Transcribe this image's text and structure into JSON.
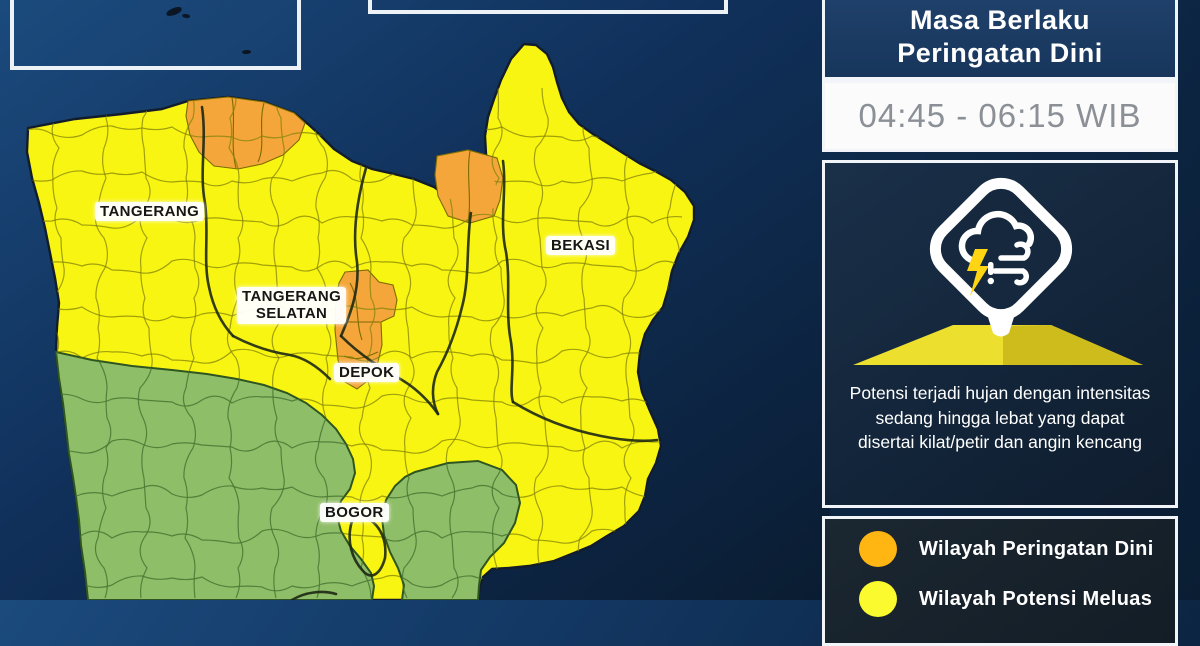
{
  "panel": {
    "title_line1": "Masa Berlaku",
    "title_line2": "Peringatan Dini",
    "validity_time": "04:45 - 06:15 WIB",
    "icon": "storm-warning-pin-icon",
    "description": "Potensi terjadi hujan dengan intensitas sedang hingga lebat yang dapat disertai kilat/petir dan angin kencang",
    "legend": [
      {
        "label": "Wilayah Peringatan Dini",
        "color": "#FFB612"
      },
      {
        "label": "Wilayah Potensi Meluas",
        "color": "#FAFA2E"
      }
    ]
  },
  "map": {
    "labels": {
      "tangerang": "TANGERANG",
      "tangerang_selatan_line1": "TANGERANG",
      "tangerang_selatan_line2": "SELATAN",
      "bekasi": "BEKASI",
      "depok": "DEPOK",
      "bogor": "BOGOR"
    },
    "colors": {
      "warning_orange": "#F4A63B",
      "potential_yellow": "#F9F512",
      "no_warning_green": "#8FBE68",
      "sea_blue": "#12335C"
    }
  }
}
